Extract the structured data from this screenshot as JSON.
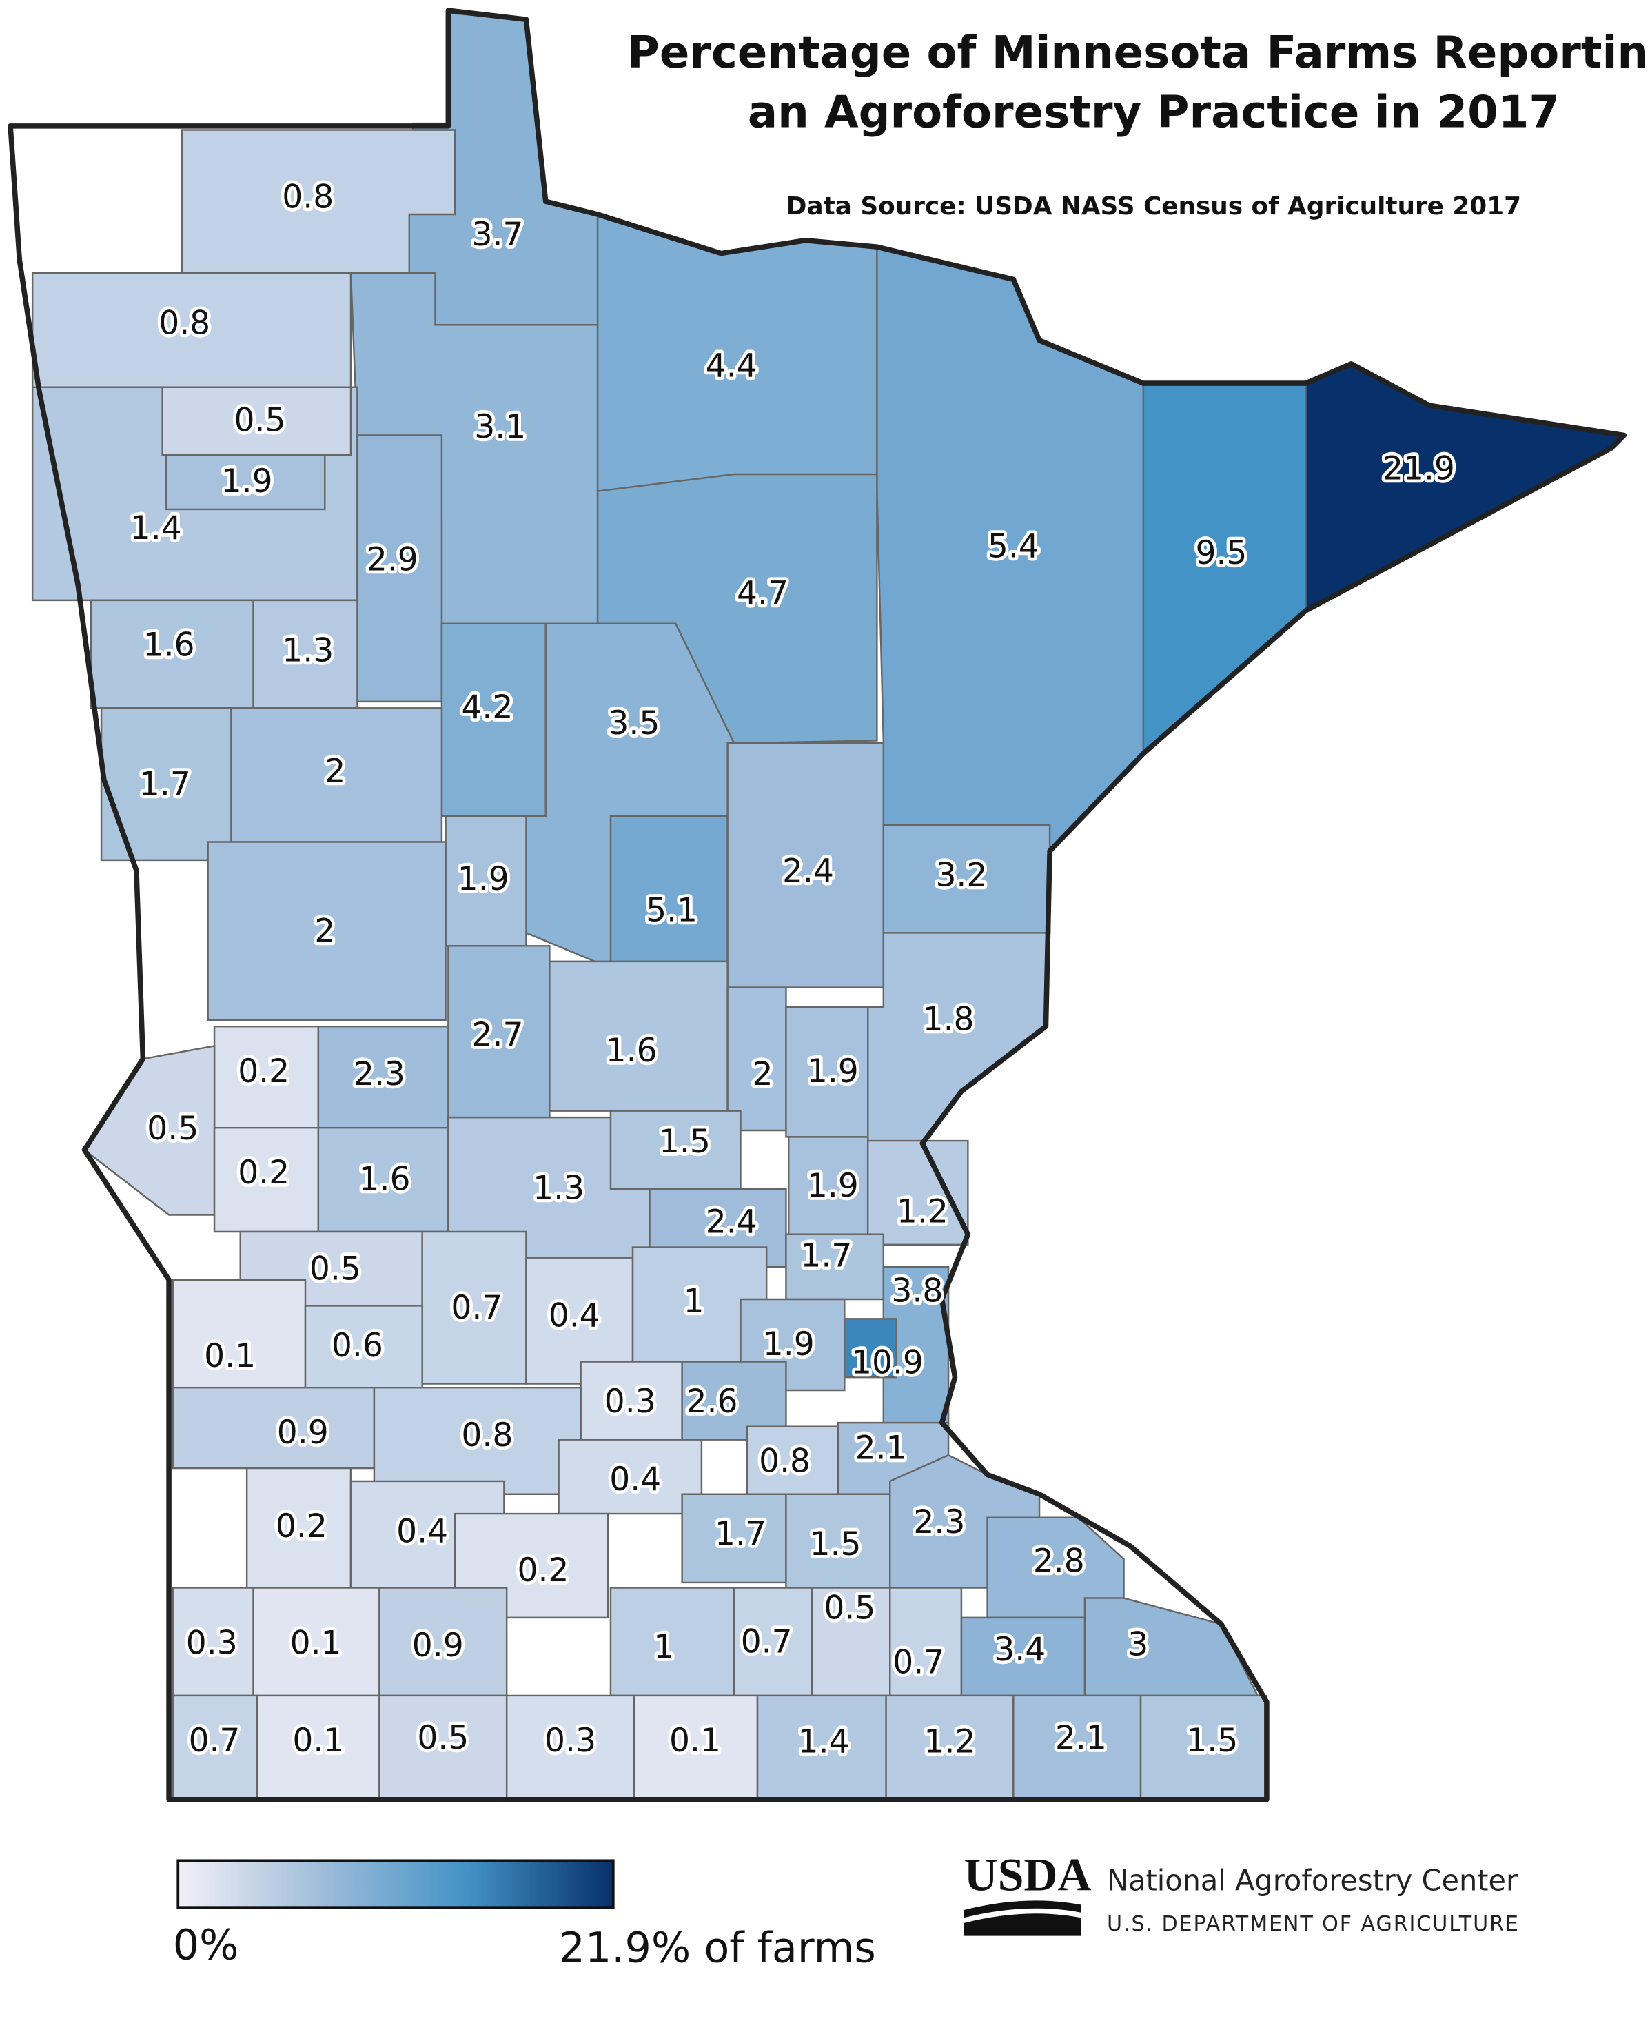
{
  "map": {
    "title_lines": [
      "Percentage of Minnesota Farms Reporting",
      "an Agroforestry Practice in 2017"
    ],
    "source": "Data Source: USDA NASS Census of Agriculture 2017",
    "counties": [
      {
        "value": 0.8
      },
      {
        "value": 0.8
      },
      {
        "value": 3.7
      },
      {
        "value": 3.1
      },
      {
        "value": 4.4
      },
      {
        "value": 5.4
      },
      {
        "value": 9.5
      },
      {
        "value": 21.9
      },
      {
        "value": 1.4
      },
      {
        "value": 0.5
      },
      {
        "value": 1.9
      },
      {
        "value": 2.9
      },
      {
        "value": 4.7
      },
      {
        "value": 1.6
      },
      {
        "value": 1.3
      },
      {
        "value": 4.2
      },
      {
        "value": 3.5
      },
      {
        "value": 1.7
      },
      {
        "value": 2
      },
      {
        "value": 5.1
      },
      {
        "value": 1.9
      },
      {
        "value": 2
      },
      {
        "value": 2.4
      },
      {
        "value": 3.2
      },
      {
        "value": 1.8
      },
      {
        "value": 2.7
      },
      {
        "value": 1.6
      },
      {
        "value": 2
      },
      {
        "value": 1.9
      },
      {
        "value": 0.2
      },
      {
        "value": 2.3
      },
      {
        "value": 0.5
      },
      {
        "value": 0.2
      },
      {
        "value": 1.6
      },
      {
        "value": 1.3
      },
      {
        "value": 1.5
      },
      {
        "value": 1.9
      },
      {
        "value": 1.2
      },
      {
        "value": 2.4
      },
      {
        "value": 1.7
      },
      {
        "value": 0.5
      },
      {
        "value": 0.7
      },
      {
        "value": 0.4
      },
      {
        "value": 1
      },
      {
        "value": 3.8
      },
      {
        "value": 1.9
      },
      {
        "value": 10.9
      },
      {
        "value": 0.1
      },
      {
        "value": 0.6
      },
      {
        "value": 0.3
      },
      {
        "value": 2.6
      },
      {
        "value": 0.9
      },
      {
        "value": 0.8
      },
      {
        "value": 0.4
      },
      {
        "value": 0.8
      },
      {
        "value": 2.1
      },
      {
        "value": 0.2
      },
      {
        "value": 0.4
      },
      {
        "value": 0.2
      },
      {
        "value": 1.7
      },
      {
        "value": 1.5
      },
      {
        "value": 2.3
      },
      {
        "value": 2.8
      },
      {
        "value": 0.3
      },
      {
        "value": 0.1
      },
      {
        "value": 0.9
      },
      {
        "value": 1
      },
      {
        "value": 0.7
      },
      {
        "value": 0.5
      },
      {
        "value": 0.7
      },
      {
        "value": 3.4
      },
      {
        "value": 3
      },
      {
        "value": 0.7
      },
      {
        "value": 0.1
      },
      {
        "value": 0.5
      },
      {
        "value": 0.3
      },
      {
        "value": 0.1
      },
      {
        "value": 1.4
      },
      {
        "value": 1.2
      },
      {
        "value": 2.1
      },
      {
        "value": 1.5
      }
    ],
    "legend": {
      "min_label": "0%",
      "max_label": "21.9% of farms",
      "range": [
        0,
        21.9
      ],
      "colors": [
        "#f2f0f7",
        "#9ebcda",
        "#4292c6",
        "#08306b"
      ]
    },
    "logo": {
      "mark": "USDA",
      "org": "National Agroforestry Center",
      "dept": "U.S. DEPARTMENT OF AGRICULTURE"
    }
  }
}
